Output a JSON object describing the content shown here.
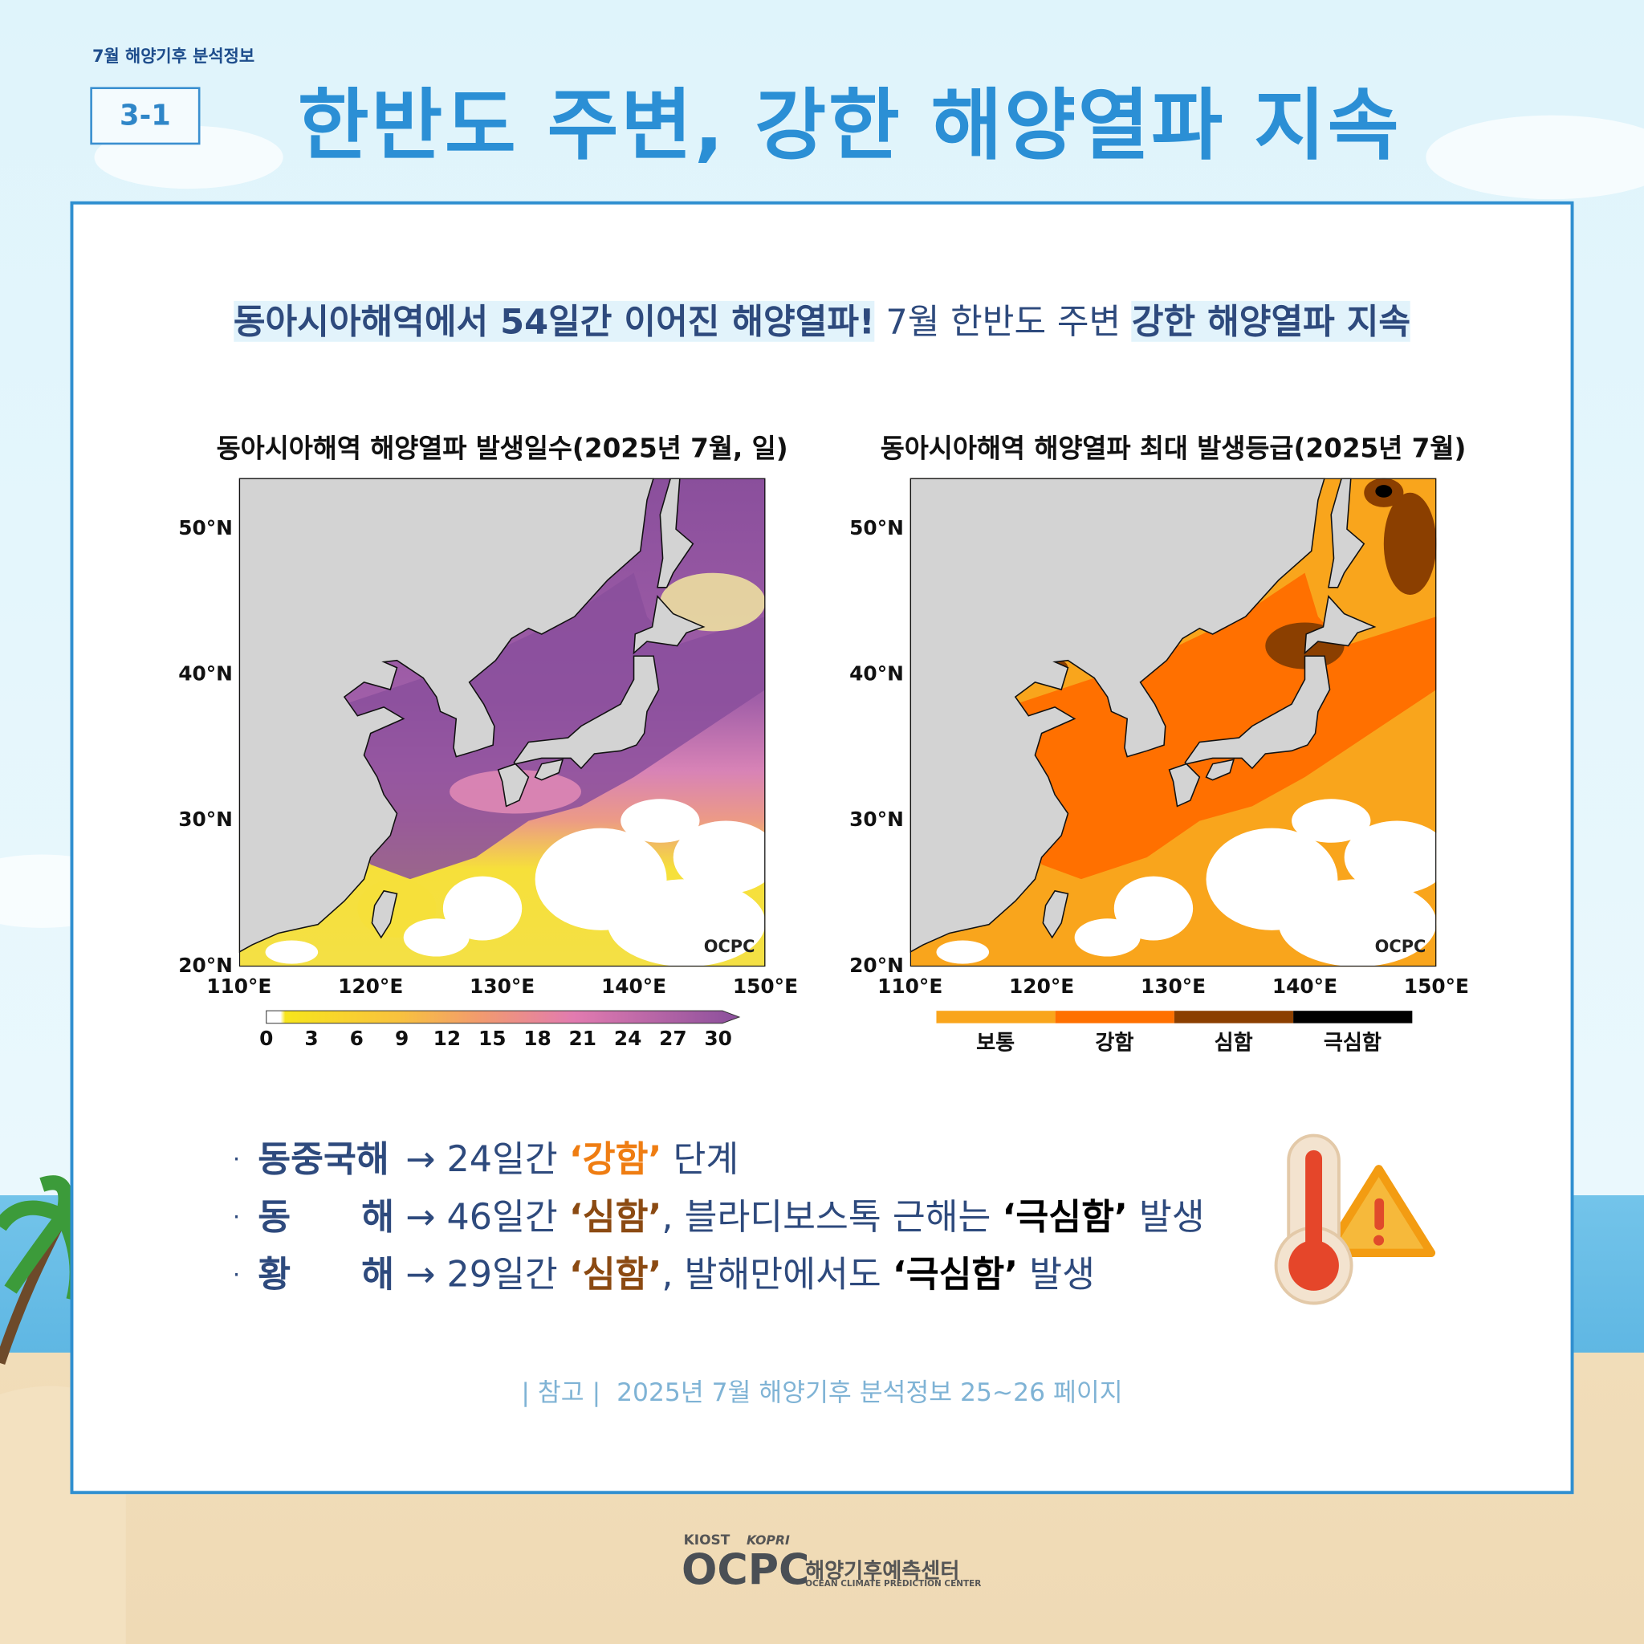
{
  "header": {
    "series": "7월 해양기후 분석정보",
    "badge": "3-1",
    "title": "한반도 주변, 강한 해양열파 지속"
  },
  "headline": [
    {
      "text": "동아시아해역에서 54일간 이어진 해양열파!",
      "highlight": true
    },
    {
      "text": " 7월 한반도 주변 ",
      "highlight": false
    },
    {
      "text": "강한 해양열파 지속",
      "highlight": true
    }
  ],
  "maps": [
    {
      "title": "동아시아해역 해양열파 발생일수(2025년 7월, 일)",
      "lat_labels": [
        "50°N",
        "40°N",
        "30°N",
        "20°N"
      ],
      "lon_labels": [
        "110°E",
        "120°E",
        "130°E",
        "140°E",
        "150°E"
      ],
      "watermark": "OCPC",
      "colorbar_ticks": [
        0,
        3,
        6,
        9,
        12,
        15,
        18,
        21,
        24,
        27,
        30
      ]
    },
    {
      "title": "동아시아해역 해양열파 최대 발생등급(2025년 7월)",
      "lat_labels": [
        "50°N",
        "40°N",
        "30°N",
        "20°N"
      ],
      "lon_labels": [
        "110°E",
        "120°E",
        "130°E",
        "140°E",
        "150°E"
      ],
      "watermark": "OCPC",
      "legend": [
        {
          "label": "보통",
          "color": "#f9a51c"
        },
        {
          "label": "강함",
          "color": "#ff7000"
        },
        {
          "label": "심함",
          "color": "#8b3f00"
        },
        {
          "label": "극심함",
          "color": "#000000"
        }
      ]
    }
  ],
  "bullets": [
    {
      "region": "동중국해",
      "parts": [
        {
          "text": " → 24일간 "
        },
        {
          "text": "‘강함’",
          "color": "#ef7d12",
          "bold": true
        },
        {
          "text": " 단계"
        }
      ]
    },
    {
      "region": "동 해",
      "parts": [
        {
          "text": " → 46일간 "
        },
        {
          "text": "‘심함’",
          "color": "#8b4a12",
          "bold": true
        },
        {
          "text": ", 블라디보스톡 근해는 "
        },
        {
          "text": "‘극심함’",
          "color": "#000000",
          "bold": true
        },
        {
          "text": " 발생"
        }
      ]
    },
    {
      "region": "황 해",
      "parts": [
        {
          "text": " → 29일간 "
        },
        {
          "text": "‘심함’",
          "color": "#8b4a12",
          "bold": true
        },
        {
          "text": ", 발해만에서도 "
        },
        {
          "text": "‘극심함’",
          "color": "#000000",
          "bold": true
        },
        {
          "text": " 발생"
        }
      ]
    }
  ],
  "reference": "| 참고 |  2025년 7월 해양기후 분석정보 25~26 페이지",
  "footer": {
    "kiost": "KIOST",
    "kopri": "KOPRI",
    "ocpc": "OCPC",
    "center_ko": "해양기후예측센터",
    "center_en": "OCEAN CLIMATE PREDICTION CENTER"
  }
}
